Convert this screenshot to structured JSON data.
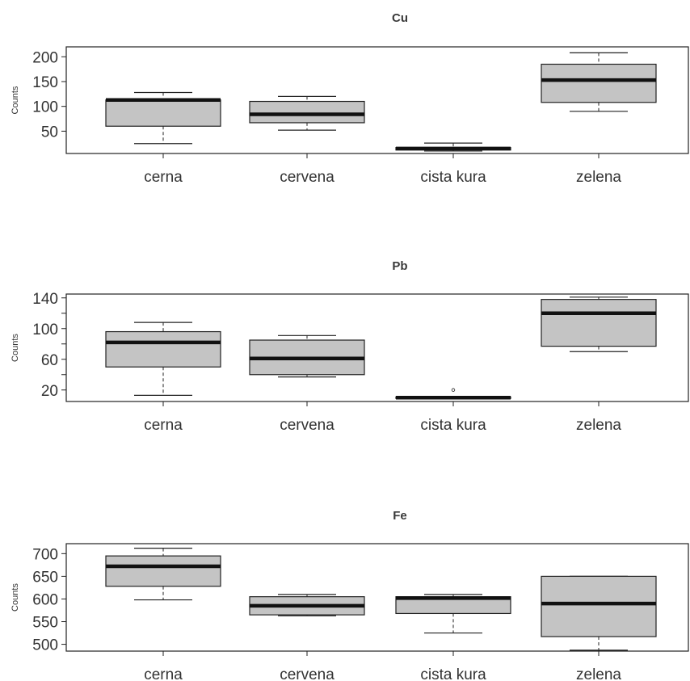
{
  "chart_data": [
    {
      "type": "boxplot",
      "title": "Cu",
      "ylabel": "Counts",
      "categories": [
        "cerna",
        "cervena",
        "cista kura",
        "zelena"
      ],
      "yticks": [
        50,
        100,
        150,
        200
      ],
      "yminor": [],
      "ylim": [
        5,
        220
      ],
      "boxes": [
        {
          "whisker_low": 25,
          "q1": 60,
          "median": 113,
          "q3": 113,
          "whisker_high": 128
        },
        {
          "whisker_low": 52,
          "q1": 67,
          "median": 84,
          "q3": 110,
          "whisker_high": 120
        },
        {
          "whisker_low": 10,
          "q1": 12,
          "median": 15,
          "q3": 17,
          "whisker_high": 26
        },
        {
          "whisker_low": 90,
          "q1": 108,
          "median": 153,
          "q3": 185,
          "whisker_high": 208
        }
      ],
      "outliers": []
    },
    {
      "type": "boxplot",
      "title": "Pb",
      "ylabel": "Counts",
      "categories": [
        "cerna",
        "cervena",
        "cista kura",
        "zelena"
      ],
      "yticks": [
        20,
        60,
        100,
        140
      ],
      "yminor": [
        40,
        80,
        120
      ],
      "ylim": [
        5,
        145
      ],
      "boxes": [
        {
          "whisker_low": 13,
          "q1": 50,
          "median": 82,
          "q3": 96,
          "whisker_high": 108
        },
        {
          "whisker_low": 37,
          "q1": 40,
          "median": 61,
          "q3": 85,
          "whisker_high": 91
        },
        {
          "whisker_low": 9,
          "q1": 9,
          "median": 10,
          "q3": 11,
          "whisker_high": 11
        },
        {
          "whisker_low": 70,
          "q1": 77,
          "median": 120,
          "q3": 138,
          "whisker_high": 141
        }
      ],
      "outliers": [
        {
          "category": "cista kura",
          "value": 20
        }
      ]
    },
    {
      "type": "boxplot",
      "title": "Fe",
      "ylabel": "Counts",
      "categories": [
        "cerna",
        "cervena",
        "cista kura",
        "zelena"
      ],
      "yticks": [
        500,
        550,
        600,
        650,
        700
      ],
      "yminor": [],
      "ylim": [
        485,
        722
      ],
      "boxes": [
        {
          "whisker_low": 598,
          "q1": 628,
          "median": 672,
          "q3": 695,
          "whisker_high": 712
        },
        {
          "whisker_low": 563,
          "q1": 565,
          "median": 585,
          "q3": 605,
          "whisker_high": 610
        },
        {
          "whisker_low": 525,
          "q1": 568,
          "median": 602,
          "q3": 605,
          "whisker_high": 610
        },
        {
          "whisker_low": 487,
          "q1": 517,
          "median": 590,
          "q3": 650,
          "whisker_high": 650
        }
      ],
      "outliers": []
    }
  ]
}
